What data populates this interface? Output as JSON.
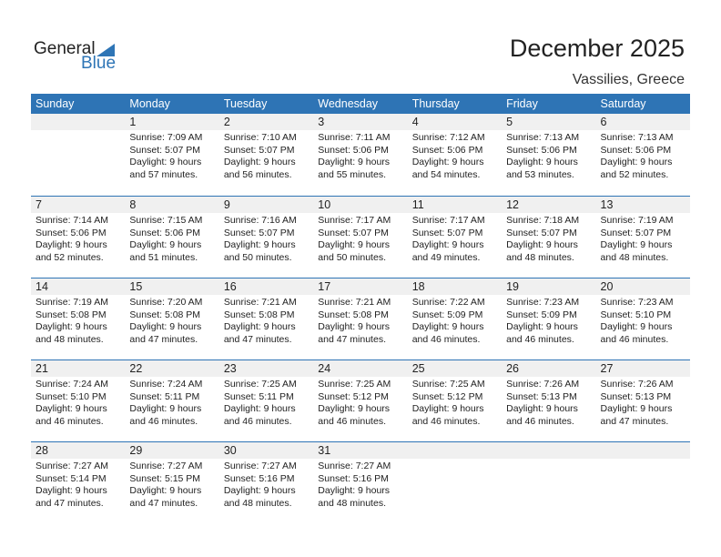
{
  "logo": {
    "general": "General",
    "blue": "Blue"
  },
  "title": "December 2025",
  "location": "Vassilies, Greece",
  "colors": {
    "accent": "#2e74b5",
    "day_band": "#f0f0f0"
  },
  "days": [
    "Sunday",
    "Monday",
    "Tuesday",
    "Wednesday",
    "Thursday",
    "Friday",
    "Saturday"
  ],
  "weeks": [
    [
      null,
      {
        "day": "1",
        "sunrise": "Sunrise: 7:09 AM",
        "sunset": "Sunset: 5:07 PM",
        "daylight1": "Daylight: 9 hours",
        "daylight2": "and 57 minutes."
      },
      {
        "day": "2",
        "sunrise": "Sunrise: 7:10 AM",
        "sunset": "Sunset: 5:07 PM",
        "daylight1": "Daylight: 9 hours",
        "daylight2": "and 56 minutes."
      },
      {
        "day": "3",
        "sunrise": "Sunrise: 7:11 AM",
        "sunset": "Sunset: 5:06 PM",
        "daylight1": "Daylight: 9 hours",
        "daylight2": "and 55 minutes."
      },
      {
        "day": "4",
        "sunrise": "Sunrise: 7:12 AM",
        "sunset": "Sunset: 5:06 PM",
        "daylight1": "Daylight: 9 hours",
        "daylight2": "and 54 minutes."
      },
      {
        "day": "5",
        "sunrise": "Sunrise: 7:13 AM",
        "sunset": "Sunset: 5:06 PM",
        "daylight1": "Daylight: 9 hours",
        "daylight2": "and 53 minutes."
      },
      {
        "day": "6",
        "sunrise": "Sunrise: 7:13 AM",
        "sunset": "Sunset: 5:06 PM",
        "daylight1": "Daylight: 9 hours",
        "daylight2": "and 52 minutes."
      }
    ],
    [
      {
        "day": "7",
        "sunrise": "Sunrise: 7:14 AM",
        "sunset": "Sunset: 5:06 PM",
        "daylight1": "Daylight: 9 hours",
        "daylight2": "and 52 minutes."
      },
      {
        "day": "8",
        "sunrise": "Sunrise: 7:15 AM",
        "sunset": "Sunset: 5:06 PM",
        "daylight1": "Daylight: 9 hours",
        "daylight2": "and 51 minutes."
      },
      {
        "day": "9",
        "sunrise": "Sunrise: 7:16 AM",
        "sunset": "Sunset: 5:07 PM",
        "daylight1": "Daylight: 9 hours",
        "daylight2": "and 50 minutes."
      },
      {
        "day": "10",
        "sunrise": "Sunrise: 7:17 AM",
        "sunset": "Sunset: 5:07 PM",
        "daylight1": "Daylight: 9 hours",
        "daylight2": "and 50 minutes."
      },
      {
        "day": "11",
        "sunrise": "Sunrise: 7:17 AM",
        "sunset": "Sunset: 5:07 PM",
        "daylight1": "Daylight: 9 hours",
        "daylight2": "and 49 minutes."
      },
      {
        "day": "12",
        "sunrise": "Sunrise: 7:18 AM",
        "sunset": "Sunset: 5:07 PM",
        "daylight1": "Daylight: 9 hours",
        "daylight2": "and 48 minutes."
      },
      {
        "day": "13",
        "sunrise": "Sunrise: 7:19 AM",
        "sunset": "Sunset: 5:07 PM",
        "daylight1": "Daylight: 9 hours",
        "daylight2": "and 48 minutes."
      }
    ],
    [
      {
        "day": "14",
        "sunrise": "Sunrise: 7:19 AM",
        "sunset": "Sunset: 5:08 PM",
        "daylight1": "Daylight: 9 hours",
        "daylight2": "and 48 minutes."
      },
      {
        "day": "15",
        "sunrise": "Sunrise: 7:20 AM",
        "sunset": "Sunset: 5:08 PM",
        "daylight1": "Daylight: 9 hours",
        "daylight2": "and 47 minutes."
      },
      {
        "day": "16",
        "sunrise": "Sunrise: 7:21 AM",
        "sunset": "Sunset: 5:08 PM",
        "daylight1": "Daylight: 9 hours",
        "daylight2": "and 47 minutes."
      },
      {
        "day": "17",
        "sunrise": "Sunrise: 7:21 AM",
        "sunset": "Sunset: 5:08 PM",
        "daylight1": "Daylight: 9 hours",
        "daylight2": "and 47 minutes."
      },
      {
        "day": "18",
        "sunrise": "Sunrise: 7:22 AM",
        "sunset": "Sunset: 5:09 PM",
        "daylight1": "Daylight: 9 hours",
        "daylight2": "and 46 minutes."
      },
      {
        "day": "19",
        "sunrise": "Sunrise: 7:23 AM",
        "sunset": "Sunset: 5:09 PM",
        "daylight1": "Daylight: 9 hours",
        "daylight2": "and 46 minutes."
      },
      {
        "day": "20",
        "sunrise": "Sunrise: 7:23 AM",
        "sunset": "Sunset: 5:10 PM",
        "daylight1": "Daylight: 9 hours",
        "daylight2": "and 46 minutes."
      }
    ],
    [
      {
        "day": "21",
        "sunrise": "Sunrise: 7:24 AM",
        "sunset": "Sunset: 5:10 PM",
        "daylight1": "Daylight: 9 hours",
        "daylight2": "and 46 minutes."
      },
      {
        "day": "22",
        "sunrise": "Sunrise: 7:24 AM",
        "sunset": "Sunset: 5:11 PM",
        "daylight1": "Daylight: 9 hours",
        "daylight2": "and 46 minutes."
      },
      {
        "day": "23",
        "sunrise": "Sunrise: 7:25 AM",
        "sunset": "Sunset: 5:11 PM",
        "daylight1": "Daylight: 9 hours",
        "daylight2": "and 46 minutes."
      },
      {
        "day": "24",
        "sunrise": "Sunrise: 7:25 AM",
        "sunset": "Sunset: 5:12 PM",
        "daylight1": "Daylight: 9 hours",
        "daylight2": "and 46 minutes."
      },
      {
        "day": "25",
        "sunrise": "Sunrise: 7:25 AM",
        "sunset": "Sunset: 5:12 PM",
        "daylight1": "Daylight: 9 hours",
        "daylight2": "and 46 minutes."
      },
      {
        "day": "26",
        "sunrise": "Sunrise: 7:26 AM",
        "sunset": "Sunset: 5:13 PM",
        "daylight1": "Daylight: 9 hours",
        "daylight2": "and 46 minutes."
      },
      {
        "day": "27",
        "sunrise": "Sunrise: 7:26 AM",
        "sunset": "Sunset: 5:13 PM",
        "daylight1": "Daylight: 9 hours",
        "daylight2": "and 47 minutes."
      }
    ],
    [
      {
        "day": "28",
        "sunrise": "Sunrise: 7:27 AM",
        "sunset": "Sunset: 5:14 PM",
        "daylight1": "Daylight: 9 hours",
        "daylight2": "and 47 minutes."
      },
      {
        "day": "29",
        "sunrise": "Sunrise: 7:27 AM",
        "sunset": "Sunset: 5:15 PM",
        "daylight1": "Daylight: 9 hours",
        "daylight2": "and 47 minutes."
      },
      {
        "day": "30",
        "sunrise": "Sunrise: 7:27 AM",
        "sunset": "Sunset: 5:16 PM",
        "daylight1": "Daylight: 9 hours",
        "daylight2": "and 48 minutes."
      },
      {
        "day": "31",
        "sunrise": "Sunrise: 7:27 AM",
        "sunset": "Sunset: 5:16 PM",
        "daylight1": "Daylight: 9 hours",
        "daylight2": "and 48 minutes."
      },
      null,
      null,
      null
    ]
  ]
}
